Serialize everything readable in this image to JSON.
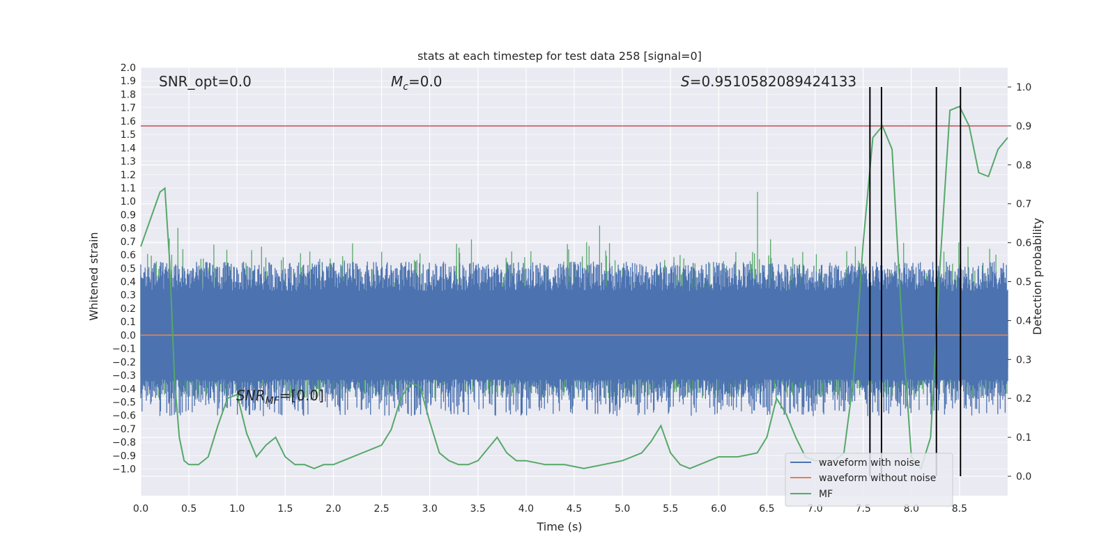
{
  "chart_data": {
    "type": "line",
    "title": "stats at each timestep for test data 258 [signal=0]",
    "xlabel": "Time (s)",
    "ylabel_left": "Whitened strain",
    "ylabel_right": "Detection probability",
    "xlim": [
      0.0,
      9.0
    ],
    "ylim_left": [
      -1.2,
      2.0
    ],
    "ylim_right": [
      -0.05,
      1.05
    ],
    "grid": true,
    "legend_position": "lower-right",
    "x_ticks": [
      "0.0",
      "0.5",
      "1.0",
      "1.5",
      "2.0",
      "2.5",
      "3.0",
      "3.5",
      "4.0",
      "4.5",
      "5.0",
      "5.5",
      "6.0",
      "6.5",
      "7.0",
      "7.5",
      "8.0",
      "8.5"
    ],
    "y_ticks_left": [
      "2.0",
      "1.9",
      "1.8",
      "1.7",
      "1.6",
      "1.5",
      "1.4",
      "1.3",
      "1.2",
      "1.1",
      "1.0",
      "0.9",
      "0.8",
      "0.7",
      "0.6",
      "0.5",
      "0.4",
      "0.3",
      "0.2",
      "0.1",
      "0.0",
      "−0.1",
      "−0.2",
      "−0.3",
      "−0.4",
      "−0.5",
      "−0.6",
      "−0.7",
      "−0.8",
      "−0.9",
      "−1.0"
    ],
    "y_ticks_right": [
      "1.0",
      "0.9",
      "0.8",
      "0.7",
      "0.6",
      "0.5",
      "0.4",
      "0.3",
      "0.2",
      "0.1",
      "0.0"
    ],
    "threshold": 0.9,
    "detection_lines_x": [
      7.57,
      7.69,
      8.26,
      8.51
    ],
    "annotations": {
      "snr_opt": "SNR_opt=0.0",
      "mc_symbol": "M",
      "mc_sub": "c",
      "mc_value": "=0.0",
      "s_symbol": "S",
      "s_value": "=0.9510582089424133",
      "snr_mf_symbol": "SNR",
      "snr_mf_sub": "MF",
      "snr_mf_value": "=[0.0]"
    },
    "series": [
      {
        "name": "waveform with noise",
        "color": "#4c72b0",
        "axis": "left",
        "kind": "noise",
        "amplitude": 0.55
      },
      {
        "name": "waveform without noise",
        "color": "#dd8452",
        "axis": "left",
        "kind": "flat",
        "value": 0.0
      },
      {
        "name": "MF",
        "color": "#55a868",
        "axis": "right",
        "kind": "noise_and_curve",
        "x": [
          0.0,
          0.1,
          0.2,
          0.25,
          0.3,
          0.35,
          0.4,
          0.45,
          0.5,
          0.6,
          0.7,
          0.8,
          0.9,
          1.0,
          1.1,
          1.2,
          1.3,
          1.4,
          1.5,
          1.6,
          1.7,
          1.8,
          1.9,
          2.0,
          2.1,
          2.2,
          2.3,
          2.4,
          2.5,
          2.6,
          2.7,
          2.8,
          2.9,
          3.0,
          3.1,
          3.2,
          3.3,
          3.4,
          3.5,
          3.6,
          3.7,
          3.8,
          3.9,
          4.0,
          4.2,
          4.4,
          4.6,
          4.8,
          5.0,
          5.2,
          5.3,
          5.4,
          5.5,
          5.6,
          5.7,
          5.8,
          5.9,
          6.0,
          6.2,
          6.4,
          6.5,
          6.6,
          6.7,
          6.8,
          6.9,
          7.0,
          7.1,
          7.2,
          7.3,
          7.4,
          7.5,
          7.6,
          7.7,
          7.8,
          7.9,
          8.0,
          8.1,
          8.2,
          8.3,
          8.4,
          8.5,
          8.6,
          8.7,
          8.8,
          8.9,
          9.0
        ],
        "y": [
          0.59,
          0.66,
          0.73,
          0.74,
          0.55,
          0.25,
          0.1,
          0.04,
          0.03,
          0.03,
          0.05,
          0.13,
          0.2,
          0.21,
          0.11,
          0.05,
          0.08,
          0.1,
          0.05,
          0.03,
          0.03,
          0.02,
          0.03,
          0.03,
          0.04,
          0.05,
          0.06,
          0.07,
          0.08,
          0.12,
          0.2,
          0.24,
          0.23,
          0.14,
          0.06,
          0.04,
          0.03,
          0.03,
          0.04,
          0.07,
          0.1,
          0.06,
          0.04,
          0.04,
          0.03,
          0.03,
          0.02,
          0.03,
          0.04,
          0.06,
          0.09,
          0.13,
          0.06,
          0.03,
          0.02,
          0.03,
          0.04,
          0.05,
          0.05,
          0.06,
          0.1,
          0.2,
          0.16,
          0.1,
          0.05,
          0.04,
          0.04,
          0.04,
          0.06,
          0.25,
          0.6,
          0.87,
          0.9,
          0.84,
          0.4,
          0.05,
          0.02,
          0.1,
          0.55,
          0.94,
          0.95,
          0.9,
          0.78,
          0.77,
          0.84,
          0.87
        ]
      }
    ]
  }
}
